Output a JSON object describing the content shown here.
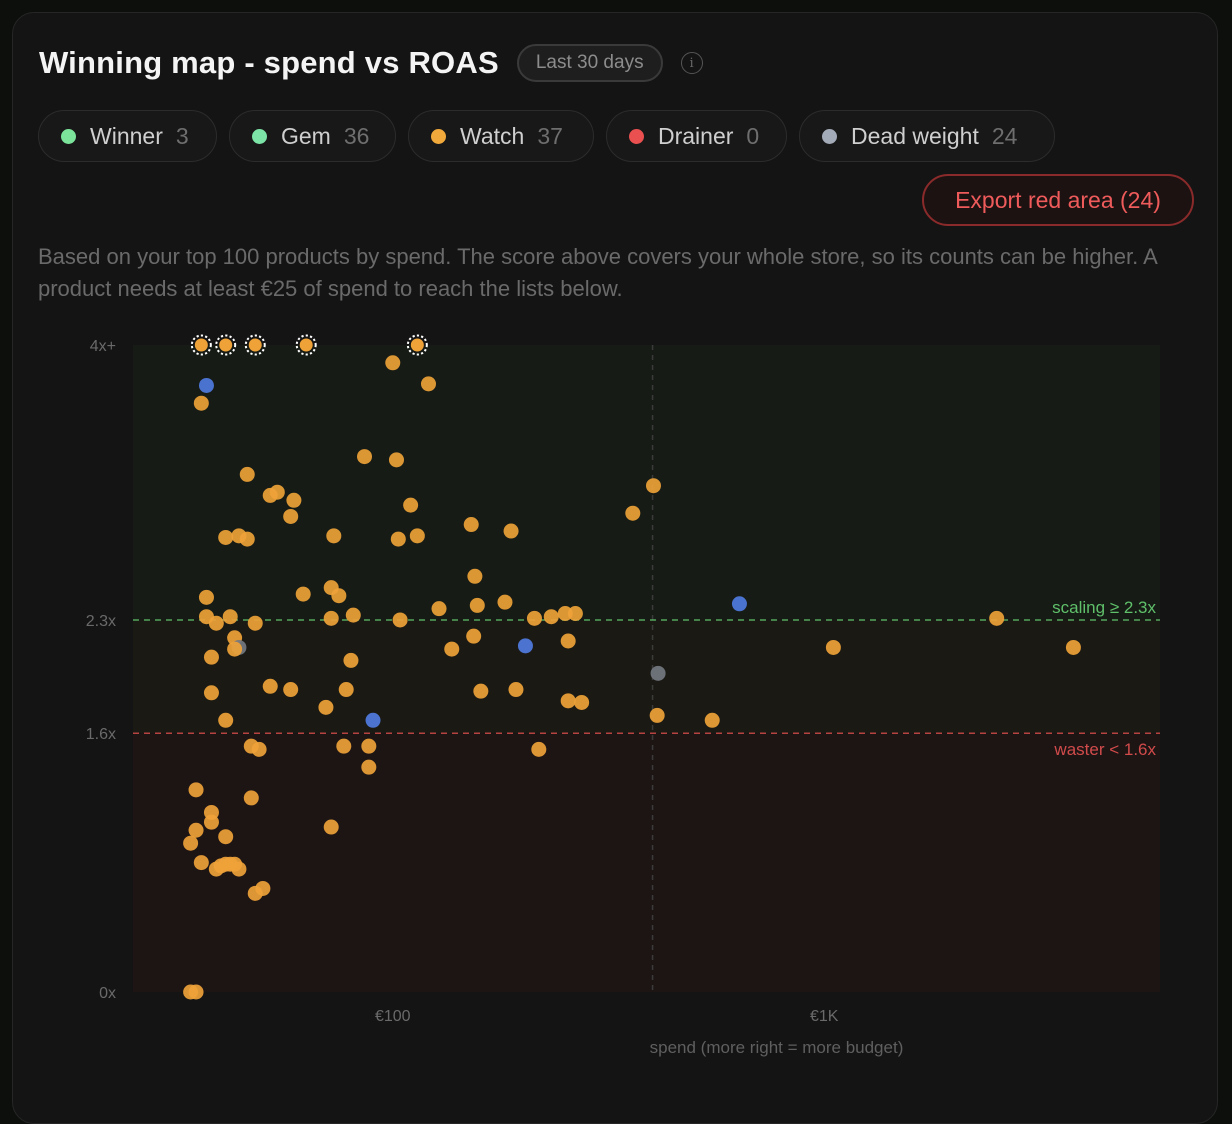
{
  "header": {
    "title": "Winning map - spend vs ROAS",
    "period": "Last 30 days"
  },
  "legend": [
    {
      "label": "Winner",
      "count": "3",
      "color": "#7be49a"
    },
    {
      "label": "Gem",
      "count": "36",
      "color": "#7be4a6"
    },
    {
      "label": "Watch",
      "count": "37",
      "color": "#f2a93b"
    },
    {
      "label": "Drainer",
      "count": "0",
      "color": "#ea5050"
    },
    {
      "label": "Dead weight",
      "count": "24",
      "color": "#a3aab8"
    }
  ],
  "export_label": "Export red area (24)",
  "description": "Based on your top 100 products by spend. The score above covers your whole store, so its counts can be higher. A product needs at least €25 of spend to reach the lists below.",
  "chart_data": {
    "type": "scatter",
    "xlabel": "spend (more right = more budget)",
    "ylabel": "",
    "x_scale": "log",
    "x_ticks": [
      {
        "value": 100,
        "label": "€100"
      },
      {
        "value": 1000,
        "label": "€1K"
      }
    ],
    "y_ticks": [
      {
        "value": 0,
        "label": "0x"
      },
      {
        "value": 1.6,
        "label": "1.6x"
      },
      {
        "value": 2.3,
        "label": "2.3x"
      },
      {
        "value": 4,
        "label": "4x+"
      }
    ],
    "ylim": [
      0,
      4
    ],
    "xlim": [
      25,
      6000
    ],
    "x_median": 400,
    "thresholds": [
      {
        "value": 2.3,
        "label": "scaling ≥ 2.3x",
        "color": "#5fbf6a"
      },
      {
        "value": 1.6,
        "label": "waster < 1.6x",
        "color": "#d24b4b"
      }
    ],
    "zones": {
      "top": "#161b15",
      "middle": "#1a1913",
      "bottom": "#1d1414"
    },
    "colors": {
      "watch": "#eea238",
      "blue": "#4f7be0",
      "gray": "#737780"
    },
    "capped": [
      36,
      41,
      48,
      63,
      114
    ],
    "points": [
      {
        "x": 37,
        "y": 3.75,
        "c": "blue"
      },
      {
        "x": 36,
        "y": 3.64,
        "c": "watch"
      },
      {
        "x": 100,
        "y": 3.89,
        "c": "watch"
      },
      {
        "x": 121,
        "y": 3.76,
        "c": "watch"
      },
      {
        "x": 110,
        "y": 3.01,
        "c": "watch"
      },
      {
        "x": 86,
        "y": 3.31,
        "c": "watch"
      },
      {
        "x": 102,
        "y": 3.29,
        "c": "watch"
      },
      {
        "x": 46,
        "y": 3.2,
        "c": "watch"
      },
      {
        "x": 52,
        "y": 3.07,
        "c": "watch"
      },
      {
        "x": 54,
        "y": 3.09,
        "c": "watch"
      },
      {
        "x": 59,
        "y": 3.04,
        "c": "watch"
      },
      {
        "x": 58,
        "y": 2.94,
        "c": "watch"
      },
      {
        "x": 41,
        "y": 2.81,
        "c": "watch"
      },
      {
        "x": 44,
        "y": 2.82,
        "c": "watch"
      },
      {
        "x": 46,
        "y": 2.8,
        "c": "watch"
      },
      {
        "x": 73,
        "y": 2.82,
        "c": "watch"
      },
      {
        "x": 103,
        "y": 2.8,
        "c": "watch"
      },
      {
        "x": 114,
        "y": 2.82,
        "c": "watch"
      },
      {
        "x": 152,
        "y": 2.89,
        "c": "watch"
      },
      {
        "x": 188,
        "y": 2.85,
        "c": "watch"
      },
      {
        "x": 360,
        "y": 2.96,
        "c": "watch"
      },
      {
        "x": 402,
        "y": 3.13,
        "c": "watch"
      },
      {
        "x": 37,
        "y": 2.44,
        "c": "watch"
      },
      {
        "x": 37,
        "y": 2.32,
        "c": "watch"
      },
      {
        "x": 39,
        "y": 2.28,
        "c": "watch"
      },
      {
        "x": 42,
        "y": 2.32,
        "c": "watch"
      },
      {
        "x": 43,
        "y": 2.19,
        "c": "watch"
      },
      {
        "x": 44,
        "y": 2.13,
        "c": "gray"
      },
      {
        "x": 43,
        "y": 2.12,
        "c": "watch"
      },
      {
        "x": 38,
        "y": 2.07,
        "c": "watch"
      },
      {
        "x": 38,
        "y": 1.85,
        "c": "watch"
      },
      {
        "x": 41,
        "y": 1.68,
        "c": "watch"
      },
      {
        "x": 48,
        "y": 2.28,
        "c": "watch"
      },
      {
        "x": 62,
        "y": 2.46,
        "c": "watch"
      },
      {
        "x": 72,
        "y": 2.5,
        "c": "watch"
      },
      {
        "x": 75,
        "y": 2.45,
        "c": "watch"
      },
      {
        "x": 72,
        "y": 2.31,
        "c": "watch"
      },
      {
        "x": 81,
        "y": 2.33,
        "c": "watch"
      },
      {
        "x": 104,
        "y": 2.3,
        "c": "watch"
      },
      {
        "x": 128,
        "y": 2.37,
        "c": "watch"
      },
      {
        "x": 155,
        "y": 2.57,
        "c": "watch"
      },
      {
        "x": 157,
        "y": 2.39,
        "c": "watch"
      },
      {
        "x": 182,
        "y": 2.41,
        "c": "watch"
      },
      {
        "x": 213,
        "y": 2.31,
        "c": "watch"
      },
      {
        "x": 233,
        "y": 2.32,
        "c": "watch"
      },
      {
        "x": 251,
        "y": 2.34,
        "c": "watch"
      },
      {
        "x": 265,
        "y": 2.34,
        "c": "watch"
      },
      {
        "x": 154,
        "y": 2.2,
        "c": "watch"
      },
      {
        "x": 137,
        "y": 2.12,
        "c": "watch"
      },
      {
        "x": 203,
        "y": 2.14,
        "c": "blue"
      },
      {
        "x": 255,
        "y": 2.17,
        "c": "watch"
      },
      {
        "x": 636,
        "y": 2.4,
        "c": "blue"
      },
      {
        "x": 1050,
        "y": 2.13,
        "c": "watch"
      },
      {
        "x": 2510,
        "y": 2.31,
        "c": "watch"
      },
      {
        "x": 3780,
        "y": 2.13,
        "c": "watch"
      },
      {
        "x": 80,
        "y": 2.05,
        "c": "watch"
      },
      {
        "x": 52,
        "y": 1.89,
        "c": "watch"
      },
      {
        "x": 58,
        "y": 1.87,
        "c": "watch"
      },
      {
        "x": 78,
        "y": 1.87,
        "c": "watch"
      },
      {
        "x": 70,
        "y": 1.76,
        "c": "watch"
      },
      {
        "x": 160,
        "y": 1.86,
        "c": "watch"
      },
      {
        "x": 193,
        "y": 1.87,
        "c": "watch"
      },
      {
        "x": 255,
        "y": 1.8,
        "c": "watch"
      },
      {
        "x": 274,
        "y": 1.79,
        "c": "watch"
      },
      {
        "x": 412,
        "y": 1.97,
        "c": "gray"
      },
      {
        "x": 410,
        "y": 1.71,
        "c": "watch"
      },
      {
        "x": 550,
        "y": 1.68,
        "c": "watch"
      },
      {
        "x": 90,
        "y": 1.68,
        "c": "blue"
      },
      {
        "x": 47,
        "y": 1.52,
        "c": "watch"
      },
      {
        "x": 49,
        "y": 1.5,
        "c": "watch"
      },
      {
        "x": 77,
        "y": 1.52,
        "c": "watch"
      },
      {
        "x": 88,
        "y": 1.52,
        "c": "watch"
      },
      {
        "x": 88,
        "y": 1.39,
        "c": "watch"
      },
      {
        "x": 218,
        "y": 1.5,
        "c": "watch"
      },
      {
        "x": 35,
        "y": 1.25,
        "c": "watch"
      },
      {
        "x": 47,
        "y": 1.2,
        "c": "watch"
      },
      {
        "x": 38,
        "y": 1.11,
        "c": "watch"
      },
      {
        "x": 38,
        "y": 1.05,
        "c": "watch"
      },
      {
        "x": 35,
        "y": 1.0,
        "c": "watch"
      },
      {
        "x": 34,
        "y": 0.92,
        "c": "watch"
      },
      {
        "x": 41,
        "y": 0.96,
        "c": "watch"
      },
      {
        "x": 36,
        "y": 0.8,
        "c": "watch"
      },
      {
        "x": 39,
        "y": 0.76,
        "c": "watch"
      },
      {
        "x": 40,
        "y": 0.78,
        "c": "watch"
      },
      {
        "x": 41,
        "y": 0.79,
        "c": "watch"
      },
      {
        "x": 42,
        "y": 0.79,
        "c": "watch"
      },
      {
        "x": 43,
        "y": 0.79,
        "c": "watch"
      },
      {
        "x": 44,
        "y": 0.76,
        "c": "watch"
      },
      {
        "x": 72,
        "y": 1.02,
        "c": "watch"
      },
      {
        "x": 48,
        "y": 0.61,
        "c": "watch"
      },
      {
        "x": 50,
        "y": 0.64,
        "c": "watch"
      },
      {
        "x": 34,
        "y": 0.0,
        "c": "watch"
      },
      {
        "x": 35,
        "y": 0.0,
        "c": "watch"
      }
    ]
  }
}
